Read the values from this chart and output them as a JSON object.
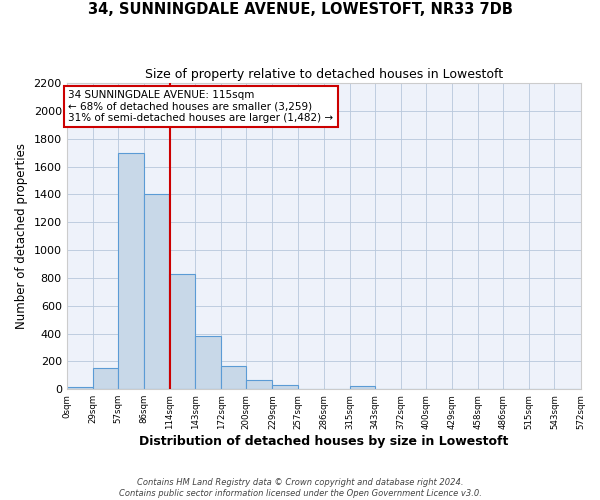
{
  "title": "34, SUNNINGDALE AVENUE, LOWESTOFT, NR33 7DB",
  "subtitle": "Size of property relative to detached houses in Lowestoft",
  "xlabel": "Distribution of detached houses by size in Lowestoft",
  "ylabel": "Number of detached properties",
  "bar_edges": [
    0,
    29,
    57,
    86,
    114,
    143,
    172,
    200,
    229,
    257,
    286,
    315,
    343,
    372,
    400,
    429,
    458,
    486,
    515,
    543,
    572
  ],
  "bar_heights": [
    15,
    155,
    1700,
    1400,
    830,
    380,
    165,
    65,
    30,
    0,
    0,
    25,
    0,
    0,
    0,
    0,
    0,
    0,
    0,
    0
  ],
  "bar_facecolor": "#c8d8e8",
  "bar_edgecolor": "#5B9BD5",
  "property_line_x": 115,
  "property_line_color": "#cc0000",
  "annotation_title": "34 SUNNINGDALE AVENUE: 115sqm",
  "annotation_line1": "← 68% of detached houses are smaller (3,259)",
  "annotation_line2": "31% of semi-detached houses are larger (1,482) →",
  "annotation_box_edgecolor": "#cc0000",
  "ylim": [
    0,
    2200
  ],
  "yticks": [
    0,
    200,
    400,
    600,
    800,
    1000,
    1200,
    1400,
    1600,
    1800,
    2000,
    2200
  ],
  "xtick_labels": [
    "0sqm",
    "29sqm",
    "57sqm",
    "86sqm",
    "114sqm",
    "143sqm",
    "172sqm",
    "200sqm",
    "229sqm",
    "257sqm",
    "286sqm",
    "315sqm",
    "343sqm",
    "372sqm",
    "400sqm",
    "429sqm",
    "458sqm",
    "486sqm",
    "515sqm",
    "543sqm",
    "572sqm"
  ],
  "footer_line1": "Contains HM Land Registry data © Crown copyright and database right 2024.",
  "footer_line2": "Contains public sector information licensed under the Open Government Licence v3.0.",
  "bg_color": "#eef2fa",
  "grid_color": "#b8c8dc"
}
